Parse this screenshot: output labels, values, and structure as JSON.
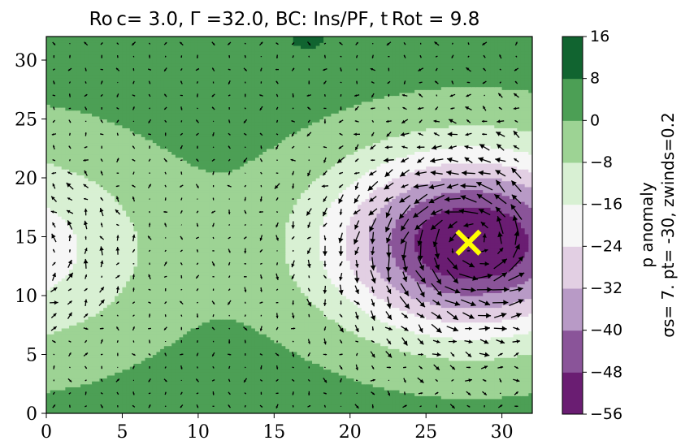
{
  "chart_data": {
    "type": "heatmap",
    "title": "Ro c= 3.0, Γ =32.0, BC: Ins/PF, t Rot = 9.8",
    "xlim": [
      0,
      32
    ],
    "ylim": [
      0,
      32
    ],
    "x_ticks": [
      "0",
      "5",
      "10",
      "15",
      "20",
      "25",
      "30"
    ],
    "y_ticks": [
      "0",
      "5",
      "10",
      "15",
      "20",
      "25",
      "30"
    ],
    "colorbar": {
      "label_line1": "p anomaly",
      "label_line2": "σs= 7.  pt= -30, zwinds=0.2",
      "levels": [
        -56,
        -48,
        -40,
        -32,
        -24,
        -16,
        -8,
        0,
        8,
        16
      ],
      "level_labels": [
        "−56",
        "−48",
        "−40",
        "−32",
        "−24",
        "−16",
        "−8",
        "0",
        "8",
        "16"
      ],
      "colors": [
        "#6a1d72",
        "#8a5499",
        "#b89ac6",
        "#e2cfe3",
        "#f6f6f6",
        "#d8f0d3",
        "#9dd394",
        "#4c9f55",
        "#116430"
      ]
    },
    "field": {
      "background_level": 4,
      "cyclone": {
        "x": 28.0,
        "y": 14.5,
        "depth": 60,
        "rx": 10.0,
        "ry": 8.2
      },
      "left_low": {
        "x": -2.5,
        "y": 14.0,
        "depth": 24,
        "rx": 10.0,
        "ry": 9.0
      },
      "top_high": {
        "x": 17.2,
        "y": 32.0,
        "value": 10
      }
    },
    "marker": {
      "x": 27.8,
      "y": 14.5,
      "color": "#ffff00",
      "symbol": "x"
    }
  }
}
